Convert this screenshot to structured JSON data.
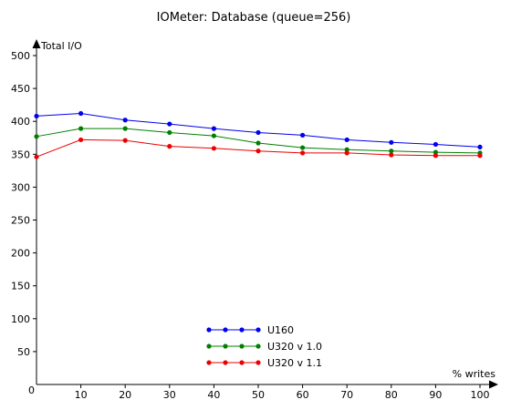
{
  "chart_data": {
    "type": "line",
    "title": "IOMeter: Database (queue=256)",
    "xlabel": "% writes",
    "ylabel": "Total I/O",
    "x": [
      0,
      10,
      20,
      30,
      40,
      50,
      60,
      70,
      80,
      90,
      100
    ],
    "xlim": [
      0,
      100
    ],
    "ylim": [
      0,
      500
    ],
    "xticks": [
      0,
      10,
      20,
      30,
      40,
      50,
      60,
      70,
      80,
      90,
      100
    ],
    "yticks": [
      0,
      50,
      100,
      150,
      200,
      250,
      300,
      350,
      400,
      450,
      500
    ],
    "grid": false,
    "legend": "bottom-center",
    "series": [
      {
        "name": "U160",
        "color": "#0000ee",
        "values": [
          408,
          412,
          402,
          396,
          389,
          383,
          379,
          372,
          368,
          365,
          361
        ]
      },
      {
        "name": "U320 v 1.0",
        "color": "#008000",
        "values": [
          377,
          389,
          389,
          383,
          378,
          367,
          360,
          357,
          355,
          353,
          352
        ]
      },
      {
        "name": "U320 v 1.1",
        "color": "#ee0000",
        "values": [
          346,
          372,
          371,
          362,
          359,
          355,
          352,
          352,
          349,
          348,
          348
        ]
      }
    ]
  }
}
